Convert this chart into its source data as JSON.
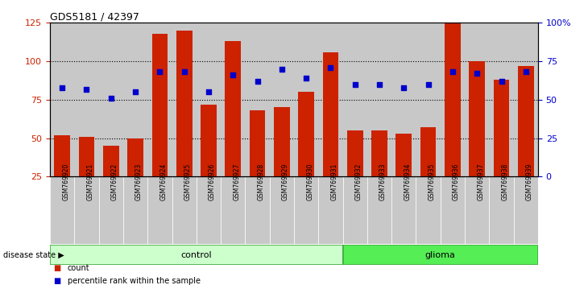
{
  "title": "GDS5181 / 42397",
  "samples": [
    "GSM769920",
    "GSM769921",
    "GSM769922",
    "GSM769923",
    "GSM769924",
    "GSM769925",
    "GSM769926",
    "GSM769927",
    "GSM769928",
    "GSM769929",
    "GSM769930",
    "GSM769931",
    "GSM769932",
    "GSM769933",
    "GSM769934",
    "GSM769935",
    "GSM769936",
    "GSM769937",
    "GSM769938",
    "GSM769939"
  ],
  "count": [
    52,
    51,
    45,
    50,
    118,
    120,
    72,
    113,
    68,
    70,
    80,
    106,
    55,
    55,
    53,
    57,
    125,
    100,
    88,
    97
  ],
  "percentile": [
    58,
    57,
    51,
    55,
    68,
    68,
    55,
    66,
    62,
    70,
    64,
    71,
    60,
    60,
    58,
    60,
    68,
    67,
    62,
    68
  ],
  "control_count": 12,
  "bar_color": "#cc2200",
  "dot_color": "#0000cc",
  "control_color": "#ccffcc",
  "glioma_color": "#55ee55",
  "tick_bg_color": "#c8c8c8",
  "ylim_left": [
    25,
    125
  ],
  "ylim_right": [
    0,
    100
  ],
  "yticks_left": [
    25,
    50,
    75,
    100,
    125
  ],
  "yticks_right": [
    0,
    25,
    50,
    75,
    100
  ],
  "ytick_right_labels": [
    "0",
    "25",
    "50",
    "75",
    "100%"
  ],
  "grid_values": [
    50,
    75,
    100
  ],
  "legend_count": "count",
  "legend_pct": "percentile rank within the sample"
}
